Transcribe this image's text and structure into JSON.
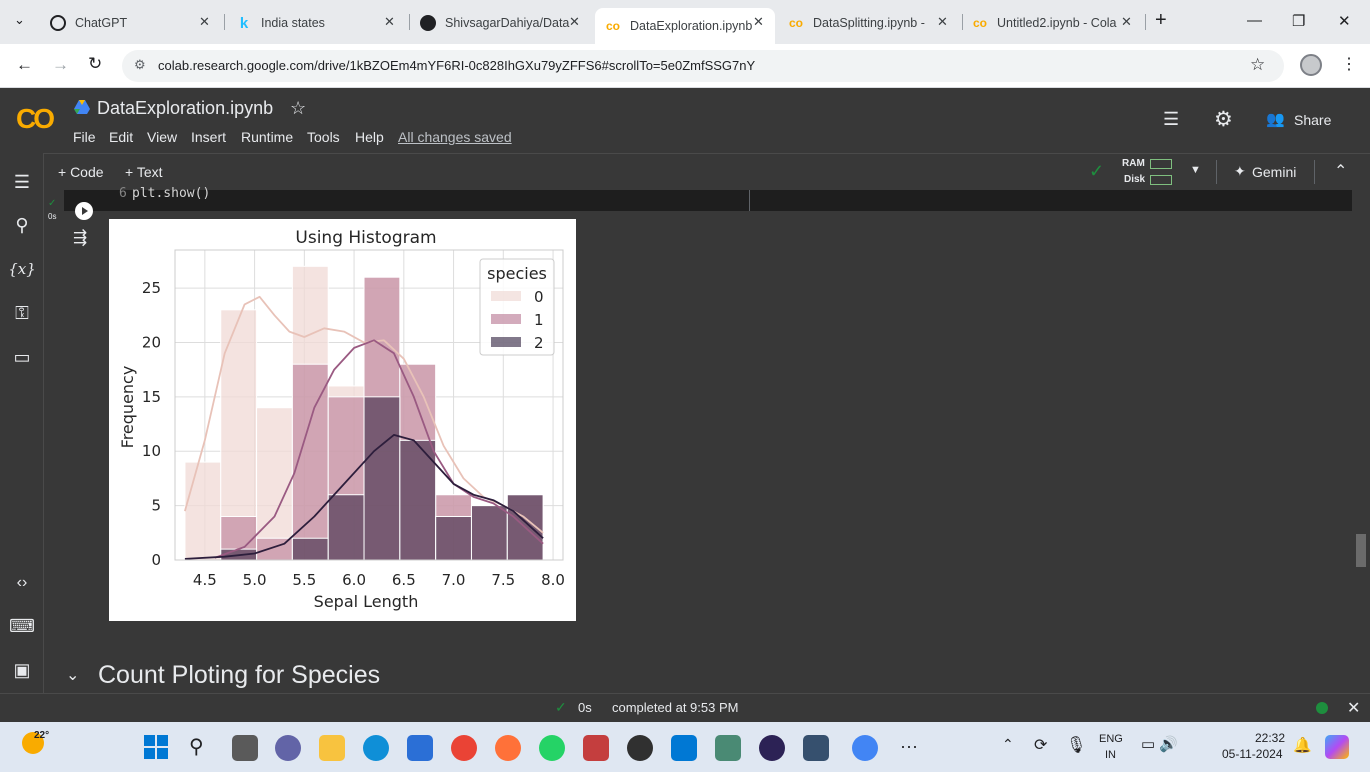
{
  "browser": {
    "tabs": [
      {
        "title": "ChatGPT",
        "icon": "chatgpt-icon"
      },
      {
        "title": "India states",
        "icon": "kaggle-icon"
      },
      {
        "title": "ShivsagarDahiya/Data",
        "icon": "github-icon"
      },
      {
        "title": "DataExploration.ipynb",
        "icon": "colab-icon",
        "active": true
      },
      {
        "title": "DataSplitting.ipynb -",
        "icon": "colab-icon"
      },
      {
        "title": "Untitled2.ipynb - Cola",
        "icon": "colab-icon"
      }
    ],
    "url": "colab.research.google.com/drive/1kBZOEm4mYF6RI-0c828IhGXu79yZFFS6#scrollTo=5e0ZmfSSG7nY"
  },
  "colab": {
    "logo": "CO",
    "notebook_title": "DataExploration.ipynb",
    "menu": [
      "File",
      "Edit",
      "View",
      "Insert",
      "Runtime",
      "Tools",
      "Help"
    ],
    "save_status": "All changes saved",
    "share_label": "Share",
    "toolbar": {
      "code_label": "+ Code",
      "text_label": "+ Text",
      "ram_label": "RAM",
      "disk_label": "Disk",
      "gemini_label": "Gemini"
    },
    "code_line_number": "6",
    "code_line": "plt.show()",
    "cell_time": "0s",
    "section_heading": "Count Ploting for Species",
    "status": {
      "time": "0s",
      "message": "completed at 9:53 PM"
    }
  },
  "chart_data": {
    "type": "bar",
    "title": "Using Histogram",
    "xlabel": "Sepal Length",
    "ylabel": "Frequency",
    "xlim": [
      4.2,
      8.1
    ],
    "ylim": [
      0,
      28.5
    ],
    "xticks": [
      "4.5",
      "5.0",
      "5.5",
      "6.0",
      "6.5",
      "7.0",
      "7.5",
      "8.0"
    ],
    "yticks": [
      "0",
      "5",
      "10",
      "15",
      "20",
      "25"
    ],
    "bin_edges": [
      4.3,
      4.66,
      5.02,
      5.38,
      5.74,
      6.1,
      6.46,
      6.82,
      7.18,
      7.54,
      7.9
    ],
    "legend_title": "species",
    "legend_position": "top-right",
    "grid": true,
    "series": [
      {
        "name": "0",
        "color": "#f0dad6",
        "values": [
          9,
          23,
          14,
          27,
          16,
          26,
          18,
          6,
          5,
          6
        ],
        "kde": [
          [
            4.3,
            4.5
          ],
          [
            4.5,
            11
          ],
          [
            4.7,
            19
          ],
          [
            4.9,
            23.5
          ],
          [
            5.05,
            24.2
          ],
          [
            5.2,
            22.5
          ],
          [
            5.35,
            21
          ],
          [
            5.5,
            20.5
          ],
          [
            5.7,
            21.3
          ],
          [
            5.9,
            21
          ],
          [
            6.1,
            20
          ],
          [
            6.3,
            20.2
          ],
          [
            6.5,
            18.5
          ],
          [
            6.7,
            15
          ],
          [
            6.9,
            10.5
          ],
          [
            7.1,
            7.5
          ],
          [
            7.3,
            5.8
          ],
          [
            7.5,
            5
          ],
          [
            7.7,
            4
          ],
          [
            7.9,
            2.5
          ]
        ]
      },
      {
        "name": "1",
        "color": "#b5738f",
        "values": [
          0,
          4,
          2,
          18,
          15,
          26,
          18,
          6,
          5,
          6
        ],
        "kde": [
          [
            4.6,
            0.2
          ],
          [
            4.9,
            1.2
          ],
          [
            5.2,
            4
          ],
          [
            5.4,
            8
          ],
          [
            5.6,
            14
          ],
          [
            5.8,
            17.5
          ],
          [
            6.0,
            19.5
          ],
          [
            6.2,
            20.2
          ],
          [
            6.4,
            19
          ],
          [
            6.6,
            15
          ],
          [
            6.8,
            10
          ],
          [
            7.0,
            7
          ],
          [
            7.2,
            5.8
          ],
          [
            7.4,
            5.2
          ],
          [
            7.6,
            4
          ],
          [
            7.9,
            1.5
          ]
        ]
      },
      {
        "name": "2",
        "color": "#2d1e3c",
        "values": [
          0,
          1,
          0,
          2,
          6,
          15,
          11,
          4,
          5,
          6
        ],
        "kde": [
          [
            4.3,
            0.1
          ],
          [
            4.7,
            0.3
          ],
          [
            5.0,
            0.6
          ],
          [
            5.3,
            1.5
          ],
          [
            5.6,
            4
          ],
          [
            5.9,
            7
          ],
          [
            6.2,
            10
          ],
          [
            6.4,
            11.5
          ],
          [
            6.6,
            11
          ],
          [
            6.8,
            9
          ],
          [
            7.0,
            7
          ],
          [
            7.2,
            6
          ],
          [
            7.4,
            5.5
          ],
          [
            7.6,
            4.5
          ],
          [
            7.9,
            2
          ]
        ]
      }
    ]
  },
  "taskbar": {
    "weather": "22°",
    "lang": "ENG",
    "region": "IN",
    "time": "22:32",
    "date": "05-11-2024"
  },
  "colors": {
    "colab_dark": "#383838",
    "colab_orange": "#f9ab00",
    "code_bg": "#1e1e1e",
    "success_green": "#1e8e3e"
  }
}
